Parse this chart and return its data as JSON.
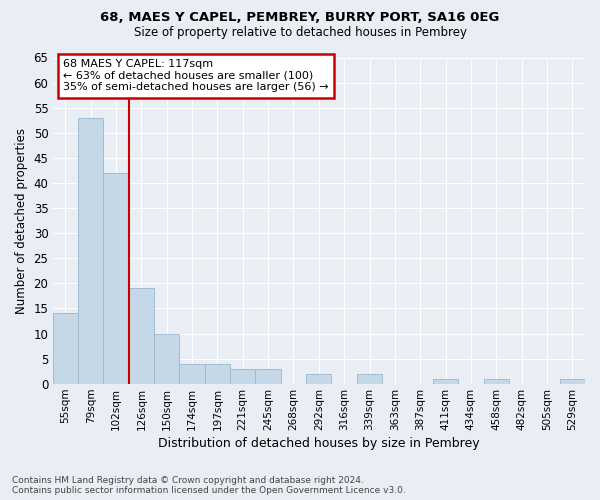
{
  "title1": "68, MAES Y CAPEL, PEMBREY, BURRY PORT, SA16 0EG",
  "title2": "Size of property relative to detached houses in Pembrey",
  "xlabel": "Distribution of detached houses by size in Pembrey",
  "ylabel": "Number of detached properties",
  "categories": [
    "55sqm",
    "79sqm",
    "102sqm",
    "126sqm",
    "150sqm",
    "174sqm",
    "197sqm",
    "221sqm",
    "245sqm",
    "268sqm",
    "292sqm",
    "316sqm",
    "339sqm",
    "363sqm",
    "387sqm",
    "411sqm",
    "434sqm",
    "458sqm",
    "482sqm",
    "505sqm",
    "529sqm"
  ],
  "values": [
    14,
    53,
    42,
    19,
    10,
    4,
    4,
    3,
    3,
    0,
    2,
    0,
    2,
    0,
    0,
    1,
    0,
    1,
    0,
    0,
    1
  ],
  "bar_color": "#c5d8e8",
  "bar_edge_color": "#9ab8cf",
  "vline_index": 2,
  "vline_color": "#cc0000",
  "annotation_line1": "68 MAES Y CAPEL: 117sqm",
  "annotation_line2": "← 63% of detached houses are smaller (100)",
  "annotation_line3": "35% of semi-detached houses are larger (56) →",
  "annotation_box_facecolor": "#ffffff",
  "annotation_box_edgecolor": "#cc0000",
  "ylim_max": 65,
  "ytick_step": 5,
  "bg_color": "#e8eef4",
  "grid_color": "#ffffff",
  "footer_line1": "Contains HM Land Registry data © Crown copyright and database right 2024.",
  "footer_line2": "Contains public sector information licensed under the Open Government Licence v3.0."
}
